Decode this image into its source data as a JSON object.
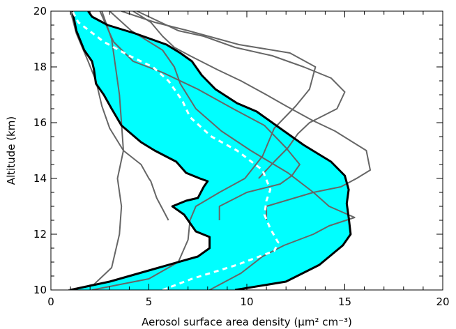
{
  "chart_data": {
    "type": "line",
    "title": "",
    "xlabel": "Aerosol surface area density (μm² cm⁻³)",
    "ylabel": "Altitude (km)",
    "xlim": [
      0,
      20
    ],
    "ylim": [
      10,
      20
    ],
    "xticks": [
      0,
      5,
      10,
      15,
      20
    ],
    "yticks": [
      10,
      12,
      14,
      16,
      18,
      20
    ],
    "x_minor_step": 1,
    "y_minor_step": 0.5,
    "grid": false,
    "colors": {
      "band": "#00ffff",
      "envelope": "#000000",
      "profiles": "#666666",
      "mean": "#ffffff"
    },
    "band": {
      "left": [
        [
          1.0,
          10.0
        ],
        [
          3.0,
          10.3
        ],
        [
          5.5,
          10.8
        ],
        [
          7.5,
          11.2
        ],
        [
          8.1,
          11.5
        ],
        [
          8.1,
          11.9
        ],
        [
          7.4,
          12.1
        ],
        [
          6.8,
          12.7
        ],
        [
          6.2,
          13.0
        ],
        [
          6.9,
          13.2
        ],
        [
          7.5,
          13.3
        ],
        [
          7.8,
          13.7
        ],
        [
          8.0,
          13.9
        ],
        [
          7.6,
          14.0
        ],
        [
          6.9,
          14.2
        ],
        [
          6.4,
          14.6
        ],
        [
          5.3,
          15.0
        ],
        [
          4.6,
          15.3
        ],
        [
          3.6,
          15.9
        ],
        [
          3.1,
          16.5
        ],
        [
          2.7,
          17.0
        ],
        [
          2.3,
          17.4
        ],
        [
          2.2,
          17.9
        ],
        [
          2.1,
          18.2
        ],
        [
          1.7,
          18.6
        ],
        [
          1.3,
          19.3
        ],
        [
          1.1,
          20.0
        ]
      ],
      "right": [
        [
          9.4,
          10.0
        ],
        [
          12.0,
          10.3
        ],
        [
          13.7,
          10.9
        ],
        [
          14.9,
          11.6
        ],
        [
          15.3,
          12.0
        ],
        [
          15.2,
          12.6
        ],
        [
          15.1,
          13.1
        ],
        [
          15.2,
          13.6
        ],
        [
          15.0,
          14.1
        ],
        [
          14.3,
          14.6
        ],
        [
          12.9,
          15.2
        ],
        [
          11.5,
          15.9
        ],
        [
          10.5,
          16.4
        ],
        [
          9.5,
          16.7
        ],
        [
          8.4,
          17.2
        ],
        [
          7.7,
          17.7
        ],
        [
          7.2,
          18.2
        ],
        [
          6.6,
          18.5
        ],
        [
          5.9,
          18.8
        ],
        [
          4.3,
          19.2
        ],
        [
          2.9,
          19.5
        ],
        [
          2.1,
          19.8
        ],
        [
          1.9,
          20.0
        ]
      ]
    },
    "mean": [
      [
        5.7,
        10.0
      ],
      [
        7.2,
        10.4
      ],
      [
        9.5,
        10.9
      ],
      [
        11.4,
        11.4
      ],
      [
        11.6,
        11.7
      ],
      [
        11.2,
        12.2
      ],
      [
        10.9,
        12.7
      ],
      [
        11.0,
        13.2
      ],
      [
        11.2,
        13.6
      ],
      [
        10.8,
        14.3
      ],
      [
        9.5,
        15.0
      ],
      [
        8.2,
        15.5
      ],
      [
        7.1,
        16.2
      ],
      [
        6.7,
        16.8
      ],
      [
        6.0,
        17.5
      ],
      [
        5.2,
        18.0
      ],
      [
        4.0,
        18.4
      ],
      [
        2.7,
        18.9
      ],
      [
        1.4,
        19.6
      ],
      [
        1.1,
        20.0
      ]
    ],
    "series": [
      {
        "points": [
          [
            0.9,
            10.0
          ],
          [
            2.2,
            10.2
          ],
          [
            3.1,
            10.8
          ],
          [
            3.5,
            12.0
          ],
          [
            3.6,
            13.0
          ],
          [
            3.4,
            14.0
          ],
          [
            3.7,
            15.0
          ],
          [
            3.6,
            16.0
          ],
          [
            3.5,
            17.0
          ],
          [
            3.3,
            18.0
          ],
          [
            3.1,
            19.0
          ],
          [
            2.6,
            20.0
          ]
        ]
      },
      {
        "points": [
          [
            2.1,
            10.0
          ],
          [
            5.0,
            10.4
          ],
          [
            6.5,
            11.0
          ],
          [
            7.0,
            11.8
          ],
          [
            7.1,
            12.5
          ],
          [
            7.4,
            13.0
          ],
          [
            8.6,
            13.5
          ],
          [
            9.9,
            14.0
          ],
          [
            10.8,
            14.8
          ],
          [
            11.4,
            15.8
          ],
          [
            12.5,
            16.6
          ],
          [
            13.2,
            17.2
          ],
          [
            13.5,
            18.0
          ],
          [
            12.2,
            18.5
          ],
          [
            9.6,
            18.8
          ],
          [
            7.0,
            19.3
          ],
          [
            5.3,
            19.6
          ],
          [
            3.6,
            20.0
          ]
        ]
      },
      {
        "points": [
          [
            6.0,
            12.5
          ],
          [
            5.7,
            12.9
          ],
          [
            5.4,
            13.3
          ],
          [
            5.1,
            13.9
          ],
          [
            5.0,
            14.0
          ],
          [
            4.6,
            14.5
          ],
          [
            3.7,
            15.0
          ],
          [
            3.0,
            15.8
          ],
          [
            2.6,
            16.6
          ],
          [
            2.3,
            17.5
          ],
          [
            1.9,
            18.2
          ],
          [
            1.3,
            19.2
          ],
          [
            1.0,
            20.0
          ]
        ]
      },
      {
        "points": [
          [
            8.1,
            10.0
          ],
          [
            9.7,
            10.6
          ],
          [
            10.8,
            11.2
          ],
          [
            11.9,
            11.6
          ],
          [
            13.4,
            12.0
          ],
          [
            14.2,
            12.3
          ],
          [
            15.5,
            12.6
          ],
          [
            14.2,
            13.0
          ],
          [
            13.4,
            13.5
          ],
          [
            12.1,
            14.2
          ],
          [
            10.2,
            15.0
          ],
          [
            8.7,
            15.7
          ],
          [
            7.4,
            16.5
          ],
          [
            6.6,
            17.4
          ],
          [
            6.3,
            18.0
          ],
          [
            5.7,
            18.6
          ],
          [
            4.1,
            19.3
          ],
          [
            3.0,
            20.0
          ]
        ]
      },
      {
        "points": [
          [
            8.6,
            12.5
          ],
          [
            8.6,
            13.0
          ],
          [
            10.0,
            13.5
          ],
          [
            11.7,
            13.8
          ],
          [
            12.3,
            14.1
          ],
          [
            12.7,
            14.5
          ],
          [
            12.0,
            15.1
          ],
          [
            10.9,
            15.9
          ],
          [
            9.3,
            16.5
          ],
          [
            7.5,
            17.2
          ],
          [
            5.7,
            17.8
          ],
          [
            4.2,
            18.2
          ],
          [
            3.2,
            18.9
          ],
          [
            2.5,
            20.0
          ]
        ]
      },
      {
        "points": [
          [
            11.0,
            12.5
          ],
          [
            11.0,
            13.0
          ],
          [
            13.4,
            13.5
          ],
          [
            14.8,
            13.7
          ],
          [
            15.6,
            14.0
          ],
          [
            16.3,
            14.3
          ],
          [
            16.1,
            15.0
          ],
          [
            14.5,
            15.7
          ],
          [
            13.3,
            16.1
          ],
          [
            12.0,
            16.6
          ],
          [
            11.0,
            17.0
          ],
          [
            9.7,
            17.5
          ],
          [
            8.5,
            17.9
          ],
          [
            7.1,
            18.4
          ],
          [
            6.3,
            18.7
          ],
          [
            5.7,
            19.1
          ],
          [
            5.1,
            19.6
          ],
          [
            4.2,
            20.0
          ]
        ]
      },
      {
        "points": [
          [
            10.6,
            14.0
          ],
          [
            11.4,
            14.6
          ],
          [
            12.1,
            15.1
          ],
          [
            12.6,
            15.6
          ],
          [
            13.2,
            16.0
          ],
          [
            14.6,
            16.5
          ],
          [
            15.0,
            17.1
          ],
          [
            14.3,
            17.6
          ],
          [
            12.9,
            18.0
          ],
          [
            11.3,
            18.4
          ],
          [
            9.4,
            18.7
          ],
          [
            7.8,
            19.1
          ],
          [
            6.5,
            19.3
          ],
          [
            5.6,
            19.6
          ],
          [
            4.4,
            20.0
          ]
        ]
      }
    ]
  }
}
